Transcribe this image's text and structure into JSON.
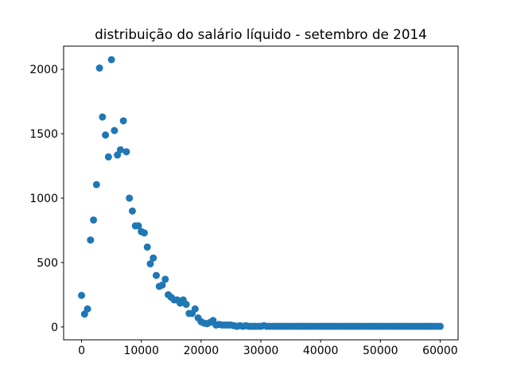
{
  "chart_data": {
    "type": "scatter",
    "title": "distribuição do salário líquido - setembro de 2014",
    "xlabel": "",
    "ylabel": "",
    "xlim": [
      -3000,
      63000
    ],
    "ylim": [
      -100,
      2180
    ],
    "grid": false,
    "legend": "none",
    "color": "#1f77b4",
    "x_ticks": [
      0,
      10000,
      20000,
      30000,
      40000,
      50000,
      60000
    ],
    "x_tick_labels": [
      "0",
      "10000",
      "20000",
      "30000",
      "40000",
      "50000",
      "60000"
    ],
    "y_ticks": [
      0,
      500,
      1000,
      1500,
      2000
    ],
    "y_tick_labels": [
      "0",
      "500",
      "1000",
      "1500",
      "2000"
    ],
    "series": [
      {
        "x": [
          0,
          500,
          1000,
          1500,
          2000,
          2500,
          3000,
          3500,
          4000,
          4500,
          5000,
          5500,
          6000,
          6500,
          7000,
          7500,
          8000,
          8500,
          9000,
          9500,
          10000,
          10500,
          11000,
          11500,
          12000,
          12500,
          13000,
          13500,
          14000,
          14500,
          15000,
          15500,
          16000,
          16500,
          17000,
          17500,
          18000,
          18500,
          19000,
          19500,
          20000,
          20500,
          21000,
          21500,
          22000,
          22500,
          23000,
          23500,
          24000,
          24500,
          25000,
          25500,
          26000,
          26500,
          27000,
          27500,
          28000,
          28500,
          29000,
          29500,
          30000,
          30500,
          31000,
          31500,
          32000,
          32500,
          33000,
          33500,
          34000,
          34500,
          35000,
          35500,
          36000,
          36500,
          37000,
          37500,
          38000,
          38500,
          39000,
          39500,
          40000,
          40500,
          41000,
          41500,
          42000,
          42500,
          43000,
          43500,
          44000,
          44500,
          45000,
          45500,
          46000,
          46500,
          47000,
          47500,
          48000,
          48500,
          49000,
          49500,
          50000,
          50500,
          51000,
          51500,
          52000,
          52500,
          53000,
          53500,
          54000,
          54500,
          55000,
          55500,
          56000,
          56500,
          57000,
          57500,
          58000,
          58500,
          59000,
          59500,
          60000
        ],
        "y": [
          245,
          100,
          140,
          675,
          830,
          1105,
          2010,
          1630,
          1490,
          1320,
          2075,
          1525,
          1335,
          1375,
          1600,
          1360,
          1000,
          900,
          785,
          785,
          740,
          730,
          620,
          490,
          535,
          400,
          315,
          325,
          370,
          250,
          230,
          210,
          210,
          185,
          210,
          175,
          105,
          105,
          140,
          70,
          40,
          30,
          25,
          35,
          50,
          15,
          20,
          15,
          15,
          15,
          15,
          10,
          5,
          10,
          5,
          10,
          5,
          5,
          5,
          5,
          5,
          10,
          5,
          5,
          5,
          5,
          5,
          5,
          5,
          5,
          5,
          5,
          5,
          5,
          5,
          5,
          5,
          5,
          5,
          5,
          5,
          5,
          5,
          5,
          5,
          5,
          5,
          5,
          5,
          5,
          5,
          5,
          5,
          5,
          5,
          5,
          5,
          5,
          5,
          5,
          5,
          5,
          5,
          5,
          5,
          5,
          5,
          5,
          5,
          5,
          5,
          5,
          5,
          5,
          5,
          5,
          5,
          5,
          5,
          5,
          5
        ]
      }
    ]
  }
}
